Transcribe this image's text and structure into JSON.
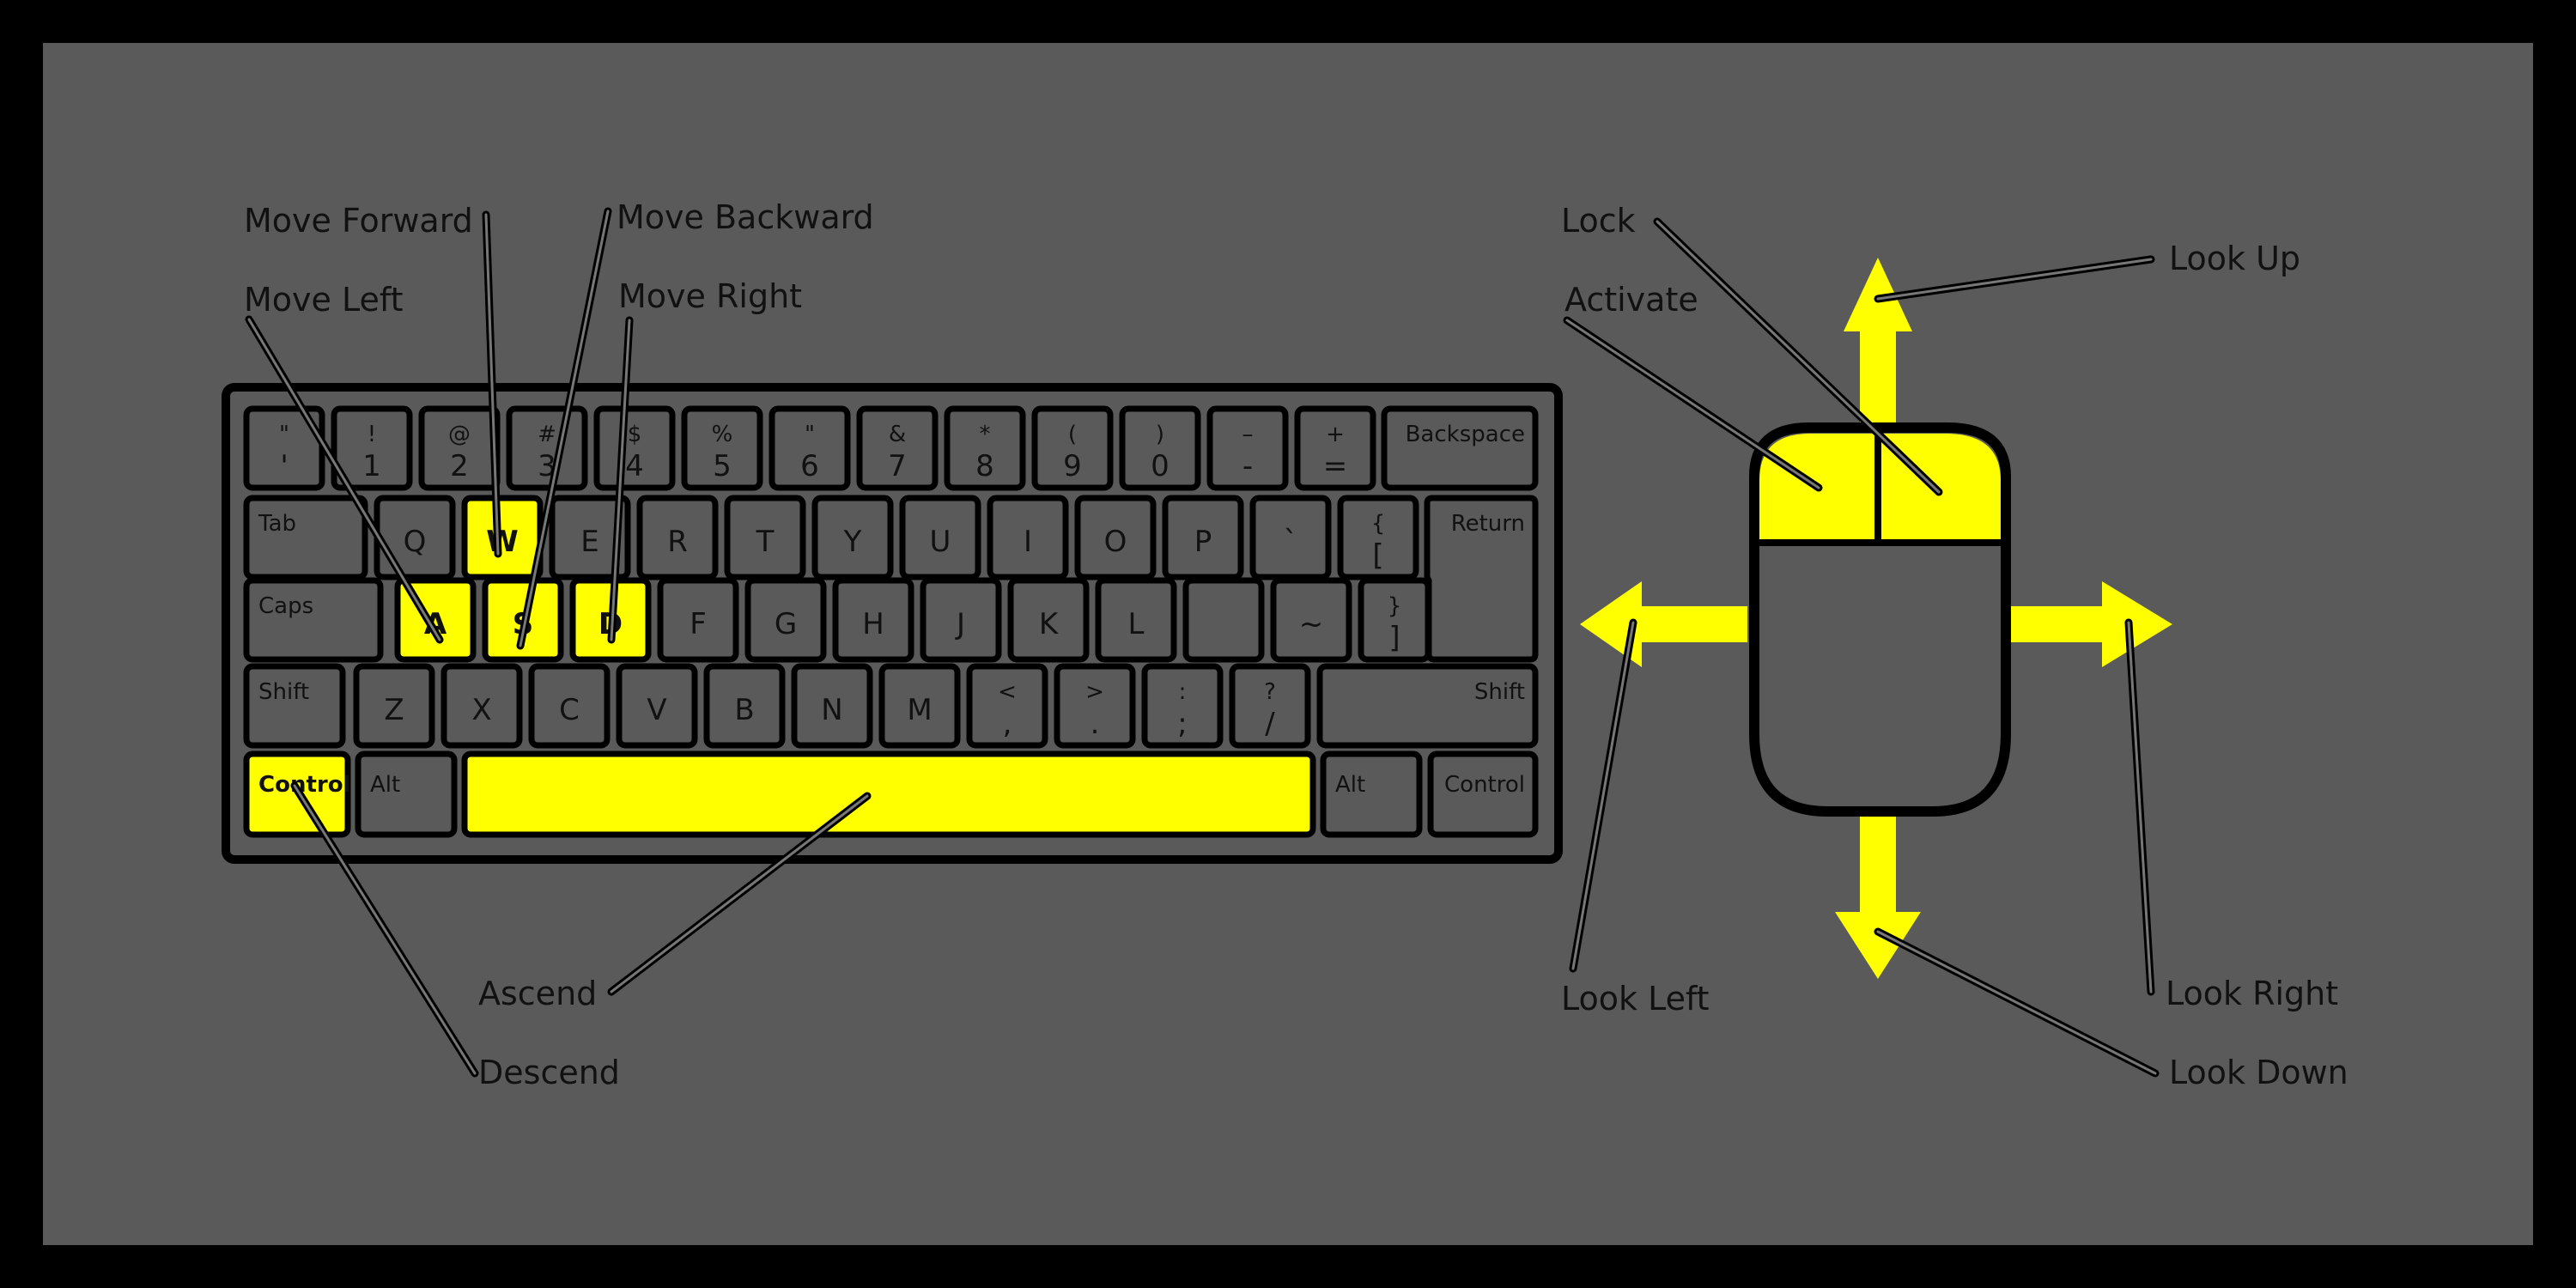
{
  "colors": {
    "border": "#000000",
    "background": "#5a5a5a",
    "key": "#5a5a5a",
    "highlight": "#ffff00",
    "ink": "#111111"
  },
  "keyboard": {
    "rows": [
      [
        {
          "top": "\"",
          "bottom": "'"
        },
        {
          "top": "!",
          "bottom": "1"
        },
        {
          "top": "@",
          "bottom": "2"
        },
        {
          "top": "#",
          "bottom": "3"
        },
        {
          "top": "$",
          "bottom": "4"
        },
        {
          "top": "%",
          "bottom": "5"
        },
        {
          "top": "\"",
          "bottom": "6"
        },
        {
          "top": "&",
          "bottom": "7"
        },
        {
          "top": "*",
          "bottom": "8"
        },
        {
          "top": "(",
          "bottom": "9"
        },
        {
          "top": ")",
          "bottom": "0"
        },
        {
          "top": "–",
          "bottom": "-"
        },
        {
          "top": "+",
          "bottom": "="
        },
        {
          "label": "Backspace"
        }
      ],
      [
        {
          "label": "Tab"
        },
        {
          "label": "Q"
        },
        {
          "label": "W",
          "highlight": true
        },
        {
          "label": "E"
        },
        {
          "label": "R"
        },
        {
          "label": "T"
        },
        {
          "label": "Y"
        },
        {
          "label": "U"
        },
        {
          "label": "I"
        },
        {
          "label": "O"
        },
        {
          "label": "P"
        },
        {
          "label": "`"
        },
        {
          "top": "{",
          "bottom": "["
        },
        {
          "label": "Return"
        }
      ],
      [
        {
          "label": "Caps"
        },
        {
          "label": "A",
          "highlight": true
        },
        {
          "label": "S",
          "highlight": true
        },
        {
          "label": "D",
          "highlight": true
        },
        {
          "label": "F"
        },
        {
          "label": "G"
        },
        {
          "label": "H"
        },
        {
          "label": "J"
        },
        {
          "label": "K"
        },
        {
          "label": "L"
        },
        {
          "label": ""
        },
        {
          "label": "~"
        },
        {
          "top": "}",
          "bottom": "]"
        }
      ],
      [
        {
          "label": "Shift"
        },
        {
          "label": "Z"
        },
        {
          "label": "X"
        },
        {
          "label": "C"
        },
        {
          "label": "V"
        },
        {
          "label": "B"
        },
        {
          "label": "N"
        },
        {
          "label": "M"
        },
        {
          "top": "<",
          "bottom": ","
        },
        {
          "top": ">",
          "bottom": "."
        },
        {
          "top": ":",
          "bottom": ";"
        },
        {
          "top": "?",
          "bottom": "/"
        },
        {
          "label": "Shift"
        }
      ],
      [
        {
          "label": "Control",
          "highlight": true
        },
        {
          "label": "Alt"
        },
        {
          "label": "",
          "highlight": true
        },
        {
          "label": "Alt"
        },
        {
          "label": "Control"
        }
      ]
    ]
  },
  "callouts": {
    "move_forward": "Move Forward",
    "move_backward": "Move Backward",
    "move_left": "Move Left",
    "move_right": "Move Right",
    "ascend": "Ascend",
    "descend": "Descend",
    "lock": "Lock",
    "activate": "Activate",
    "look_up": "Look Up",
    "look_left": "Look Left",
    "look_right": "Look Right",
    "look_down": "Look Down"
  },
  "mouse": {
    "left_button_highlight": true,
    "right_button_highlight": true
  }
}
